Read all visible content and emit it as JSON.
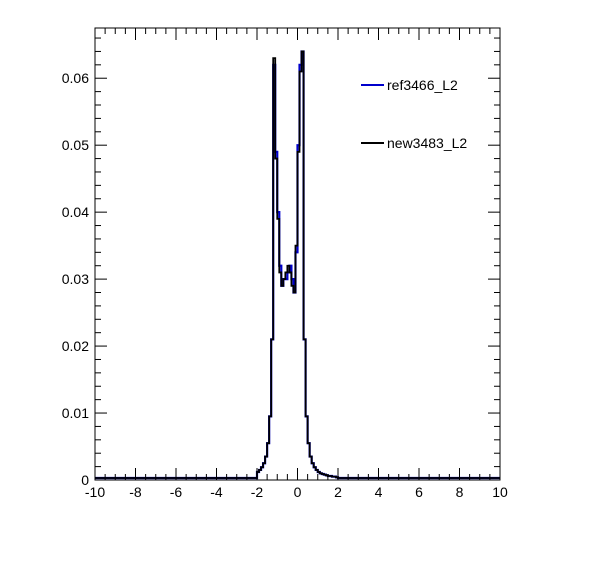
{
  "chart_data": {
    "type": "histogram-line",
    "title": "",
    "xlabel": "",
    "ylabel": "",
    "xlim": [
      -10,
      10
    ],
    "ylim": [
      0,
      0.0675
    ],
    "x_ticks": [
      -10,
      -8,
      -6,
      -4,
      -2,
      0,
      2,
      4,
      6,
      8,
      10
    ],
    "x_tick_labels": [
      "-10",
      "-8",
      "-6",
      "-4",
      "-2",
      "0",
      "2",
      "4",
      "6",
      "8",
      "10"
    ],
    "y_ticks": [
      0,
      0.01,
      0.02,
      0.03,
      0.04,
      0.05,
      0.06
    ],
    "y_tick_labels": [
      "0",
      "0.01",
      "0.02",
      "0.03",
      "0.04",
      "0.05",
      "0.06"
    ],
    "grid": false,
    "legend_position": "top-right",
    "bin_width": 0.1,
    "series": [
      {
        "name": "ref3466_L2",
        "color": "#0000cc",
        "x": [
          -2.0,
          -1.9,
          -1.8,
          -1.7,
          -1.6,
          -1.5,
          -1.4,
          -1.3,
          -1.2,
          -1.1,
          -1.0,
          -0.9,
          -0.8,
          -0.7,
          -0.6,
          -0.5,
          -0.4,
          -0.3,
          -0.2,
          -0.1,
          0.0,
          0.1,
          0.2,
          0.3,
          0.4,
          0.5,
          0.6,
          0.7,
          0.8,
          0.9,
          1.0,
          1.1,
          1.2,
          1.3,
          1.4,
          1.5,
          1.6,
          1.7,
          1.8,
          1.9
        ],
        "values": [
          0.0012,
          0.0015,
          0.0019,
          0.0025,
          0.0035,
          0.0055,
          0.0095,
          0.021,
          0.062,
          0.049,
          0.04,
          0.032,
          0.029,
          0.03,
          0.03,
          0.031,
          0.032,
          0.03,
          0.028,
          0.034,
          0.05,
          0.062,
          0.064,
          0.021,
          0.0095,
          0.0055,
          0.0035,
          0.0025,
          0.0019,
          0.0015,
          0.0012,
          0.001,
          0.0009,
          0.0008,
          0.0007,
          0.0006,
          0.0006,
          0.0005,
          0.0005,
          0.0004
        ]
      },
      {
        "name": "new3483_L2",
        "color": "#000000",
        "x": [
          -2.0,
          -1.9,
          -1.8,
          -1.7,
          -1.6,
          -1.5,
          -1.4,
          -1.3,
          -1.2,
          -1.1,
          -1.0,
          -0.9,
          -0.8,
          -0.7,
          -0.6,
          -0.5,
          -0.4,
          -0.3,
          -0.2,
          -0.1,
          0.0,
          0.1,
          0.2,
          0.3,
          0.4,
          0.5,
          0.6,
          0.7,
          0.8,
          0.9,
          1.0,
          1.1,
          1.2,
          1.3,
          1.4,
          1.5,
          1.6,
          1.7,
          1.8,
          1.9
        ],
        "values": [
          0.0012,
          0.0015,
          0.0019,
          0.0025,
          0.0035,
          0.0055,
          0.0095,
          0.021,
          0.063,
          0.048,
          0.039,
          0.031,
          0.029,
          0.03,
          0.031,
          0.032,
          0.031,
          0.029,
          0.028,
          0.035,
          0.049,
          0.061,
          0.064,
          0.021,
          0.0095,
          0.0055,
          0.0035,
          0.0025,
          0.0019,
          0.0015,
          0.0012,
          0.001,
          0.0009,
          0.0008,
          0.0007,
          0.0006,
          0.0006,
          0.0005,
          0.0005,
          0.0004
        ]
      }
    ],
    "tail_level": 0.0003
  }
}
